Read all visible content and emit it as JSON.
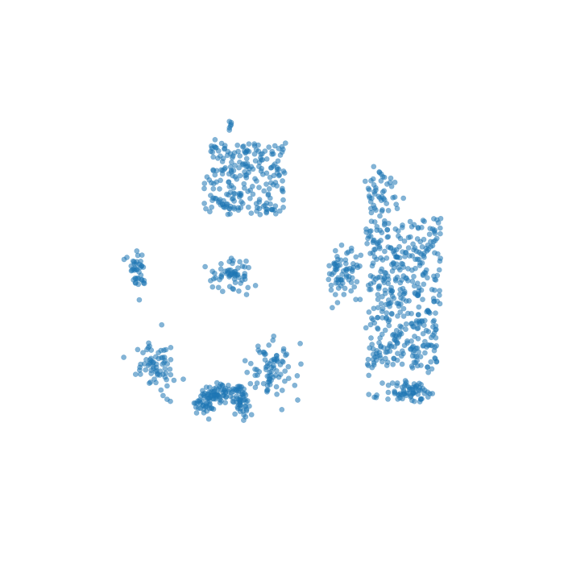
{
  "chart_data": {
    "type": "scatter",
    "title": "",
    "xlabel": "",
    "ylabel": "",
    "axes_visible": false,
    "grid": false,
    "legend": "none",
    "xlim": [
      0,
      100
    ],
    "ylim": [
      0,
      100
    ],
    "point_style": {
      "color": "#1f77b4",
      "opacity": 0.55,
      "edge_color": "#1f77b4"
    },
    "series": [
      {
        "values_note": "",
        "clusters": [
          {
            "id": "top-center",
            "cx": 42,
            "cy": 73,
            "sx": 6.5,
            "sy": 6.0,
            "n": 230,
            "seed": 11,
            "shape": "sheet"
          },
          {
            "id": "top-center-cap",
            "cx": 38.8,
            "cy": 84.2,
            "sx": 0.4,
            "sy": 0.7,
            "n": 6,
            "seed": 12,
            "shape": "blob"
          },
          {
            "id": "mid-center-blob",
            "cx": 38.5,
            "cy": 51.5,
            "sx": 2.4,
            "sy": 1.8,
            "n": 60,
            "seed": 13,
            "shape": "blob"
          },
          {
            "id": "left-small",
            "cx": 18.5,
            "cy": 52.5,
            "sx": 1.2,
            "sy": 2.0,
            "n": 40,
            "seed": 14,
            "shape": "blob"
          },
          {
            "id": "bottom-left-group",
            "cx": 22.5,
            "cy": 31.5,
            "sx": 2.4,
            "sy": 3.5,
            "n": 70,
            "seed": 15,
            "shape": "blob"
          },
          {
            "id": "bottom-center-arc",
            "cx": 37,
            "cy": 24,
            "sx": 5.0,
            "sy": 5.5,
            "n": 150,
            "seed": 16,
            "shape": "arc"
          },
          {
            "id": "bottom-center-right",
            "cx": 47.5,
            "cy": 30,
            "sx": 2.5,
            "sy": 3.0,
            "n": 80,
            "seed": 17,
            "shape": "blob"
          },
          {
            "id": "right-large",
            "cx": 77,
            "cy": 47,
            "sx": 6.0,
            "sy": 13.0,
            "n": 420,
            "seed": 18,
            "shape": "sheet"
          },
          {
            "id": "right-upper-tail",
            "cx": 72,
            "cy": 70,
            "sx": 1.8,
            "sy": 2.8,
            "n": 50,
            "seed": 19,
            "shape": "blob"
          },
          {
            "id": "right-left-spur",
            "cx": 63.5,
            "cy": 52,
            "sx": 1.8,
            "sy": 3.2,
            "n": 70,
            "seed": 20,
            "shape": "blob"
          },
          {
            "id": "right-bottom-blob",
            "cx": 78.5,
            "cy": 25.5,
            "sx": 3.0,
            "sy": 1.2,
            "n": 70,
            "seed": 21,
            "shape": "blob"
          }
        ]
      }
    ]
  }
}
